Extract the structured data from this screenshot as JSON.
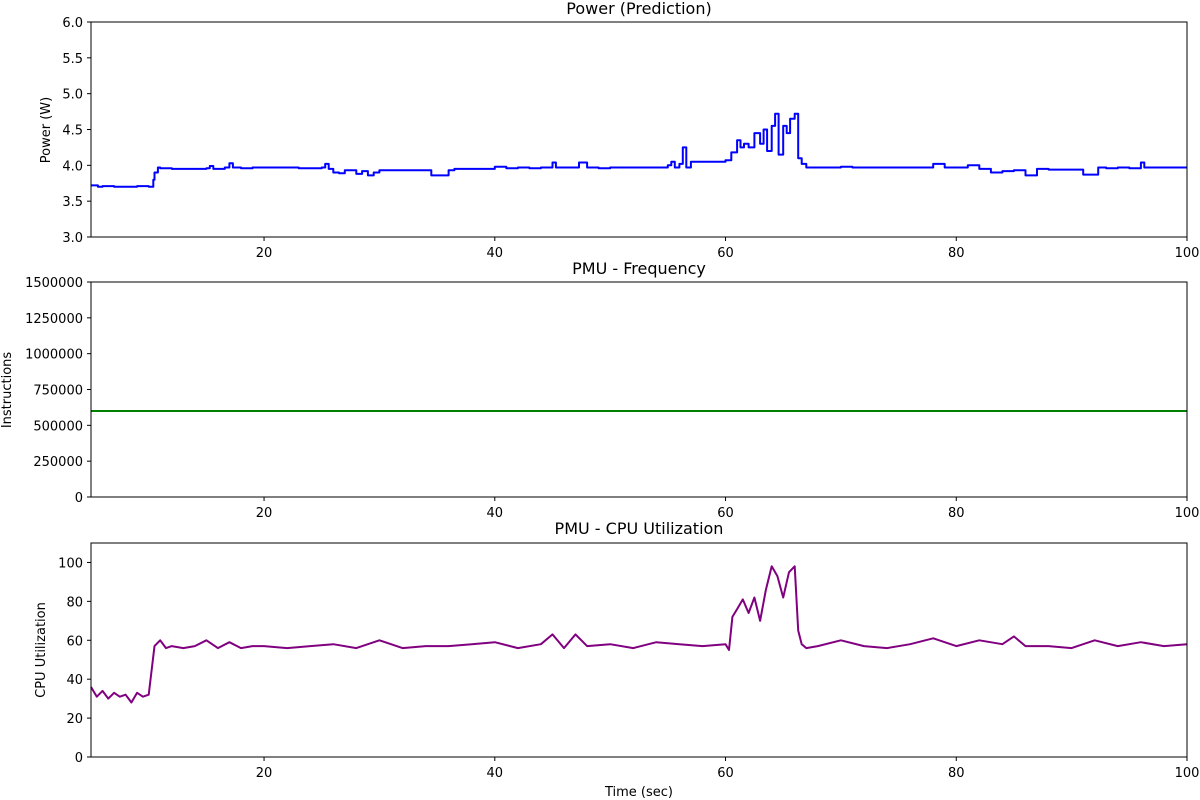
{
  "chart_data": [
    {
      "type": "line",
      "title": "Power (Prediction)",
      "xlabel": "",
      "ylabel": "Power (W)",
      "xlim": [
        5,
        100
      ],
      "ylim": [
        3.0,
        6.0
      ],
      "xticks": [
        "20",
        "40",
        "60",
        "80",
        "100"
      ],
      "yticks": [
        "3.0",
        "3.5",
        "4.0",
        "4.5",
        "5.0",
        "5.5",
        "6.0"
      ],
      "grid": false,
      "step": true,
      "series": [
        {
          "color": "#0000ff",
          "x": [
            5,
            5.6,
            6,
            7,
            8,
            9,
            10,
            10.2,
            10.4,
            10.5,
            10.8,
            11,
            12,
            13,
            14,
            15,
            15.3,
            15.6,
            16,
            16.6,
            17,
            17.3,
            18,
            19,
            20,
            21,
            22,
            23,
            24,
            25,
            25.3,
            25.6,
            26,
            26.5,
            27,
            28,
            28.5,
            29,
            29.5,
            30,
            31,
            32,
            33,
            34,
            34.5,
            35,
            36,
            36.5,
            37,
            38,
            39,
            40,
            41,
            42,
            43,
            44,
            45,
            45.3,
            45.6,
            46,
            47,
            47.3,
            48,
            49,
            50,
            51,
            52,
            53,
            54,
            55,
            55.3,
            55.6,
            56,
            56.3,
            56.6,
            57,
            58,
            59,
            60,
            60.5,
            61,
            61.3,
            61.6,
            62,
            62.5,
            63,
            63.3,
            63.6,
            64,
            64.3,
            64.6,
            65,
            65.3,
            65.6,
            66,
            66.3,
            66.6,
            67,
            68,
            69,
            70,
            71,
            72,
            73,
            74,
            75,
            76,
            77,
            78,
            79,
            80,
            81,
            82,
            83,
            84,
            85,
            86,
            87,
            88,
            89,
            90,
            91,
            92,
            92.3,
            93,
            94,
            95,
            96,
            96.3,
            97,
            98,
            99,
            100
          ],
          "values": [
            3.72,
            3.7,
            3.71,
            3.7,
            3.7,
            3.71,
            3.7,
            3.7,
            3.8,
            3.9,
            3.97,
            3.96,
            3.95,
            3.95,
            3.95,
            3.96,
            3.99,
            3.95,
            3.95,
            3.97,
            4.03,
            3.97,
            3.96,
            3.97,
            3.97,
            3.97,
            3.97,
            3.96,
            3.96,
            3.97,
            4.02,
            3.95,
            3.9,
            3.89,
            3.93,
            3.88,
            3.92,
            3.86,
            3.9,
            3.93,
            3.93,
            3.93,
            3.93,
            3.93,
            3.86,
            3.86,
            3.93,
            3.95,
            3.95,
            3.95,
            3.95,
            3.98,
            3.96,
            3.97,
            3.96,
            3.97,
            4.04,
            3.97,
            3.97,
            3.97,
            3.97,
            4.04,
            3.97,
            3.96,
            3.97,
            3.97,
            3.97,
            3.97,
            3.97,
            4.0,
            4.05,
            3.97,
            4.02,
            4.25,
            3.97,
            4.05,
            4.05,
            4.05,
            4.07,
            4.18,
            4.35,
            4.25,
            4.3,
            4.25,
            4.45,
            4.3,
            4.5,
            4.2,
            4.55,
            4.72,
            4.15,
            4.55,
            4.45,
            4.65,
            4.72,
            4.1,
            4.02,
            3.97,
            3.97,
            3.97,
            3.98,
            3.97,
            3.97,
            3.97,
            3.97,
            3.97,
            3.97,
            3.97,
            4.02,
            3.97,
            3.97,
            4.0,
            3.95,
            3.9,
            3.92,
            3.93,
            3.86,
            3.95,
            3.94,
            3.94,
            3.94,
            3.87,
            3.87,
            3.97,
            3.96,
            3.97,
            3.96,
            4.04,
            3.97,
            3.97,
            3.97,
            3.97,
            3.97
          ]
        }
      ]
    },
    {
      "type": "line",
      "title": "PMU - Frequency",
      "xlabel": "",
      "ylabel": "Instructions",
      "xlim": [
        5,
        100
      ],
      "ylim": [
        0,
        1500000
      ],
      "xticks": [
        "20",
        "40",
        "60",
        "80",
        "100"
      ],
      "yticks": [
        "0",
        "250000",
        "500000",
        "750000",
        "1000000",
        "1250000",
        "1500000"
      ],
      "grid": false,
      "step": false,
      "series": [
        {
          "color": "#008000",
          "x": [
            5,
            100
          ],
          "values": [
            600000,
            600000
          ]
        }
      ]
    },
    {
      "type": "line",
      "title": "PMU - CPU Utilization",
      "xlabel": "Time (sec)",
      "ylabel": "CPU Utilization",
      "xlim": [
        5,
        100
      ],
      "ylim": [
        0,
        110
      ],
      "xticks": [
        "20",
        "40",
        "60",
        "80",
        "100"
      ],
      "yticks": [
        "0",
        "20",
        "40",
        "60",
        "80",
        "100"
      ],
      "grid": false,
      "step": false,
      "series": [
        {
          "color": "#800080",
          "x": [
            5,
            5.5,
            6,
            6.5,
            7,
            7.5,
            8,
            8.5,
            9,
            9.5,
            10,
            10.5,
            11,
            11.5,
            12,
            13,
            14,
            15,
            16,
            17,
            18,
            19,
            20,
            22,
            24,
            26,
            28,
            30,
            32,
            34,
            36,
            38,
            40,
            42,
            44,
            45,
            46,
            47,
            48,
            50,
            52,
            54,
            56,
            58,
            60,
            60.3,
            60.6,
            61,
            61.5,
            62,
            62.5,
            63,
            63.5,
            64,
            64.5,
            65,
            65.5,
            66,
            66.3,
            66.6,
            67,
            68,
            70,
            72,
            74,
            76,
            78,
            80,
            82,
            84,
            85,
            86,
            88,
            90,
            92,
            94,
            96,
            98,
            100
          ],
          "values": [
            36,
            31,
            34,
            30,
            33,
            31,
            32,
            28,
            33,
            31,
            32,
            57,
            60,
            56,
            57,
            56,
            57,
            60,
            56,
            59,
            56,
            57,
            57,
            56,
            57,
            58,
            56,
            60,
            56,
            57,
            57,
            58,
            59,
            56,
            58,
            63,
            56,
            63,
            57,
            58,
            56,
            59,
            58,
            57,
            58,
            55,
            72,
            76,
            81,
            74,
            82,
            70,
            86,
            98,
            93,
            82,
            95,
            98,
            65,
            58,
            56,
            57,
            60,
            57,
            56,
            58,
            61,
            57,
            60,
            58,
            62,
            57,
            57,
            56,
            60,
            57,
            59,
            57,
            58
          ]
        }
      ]
    }
  ]
}
